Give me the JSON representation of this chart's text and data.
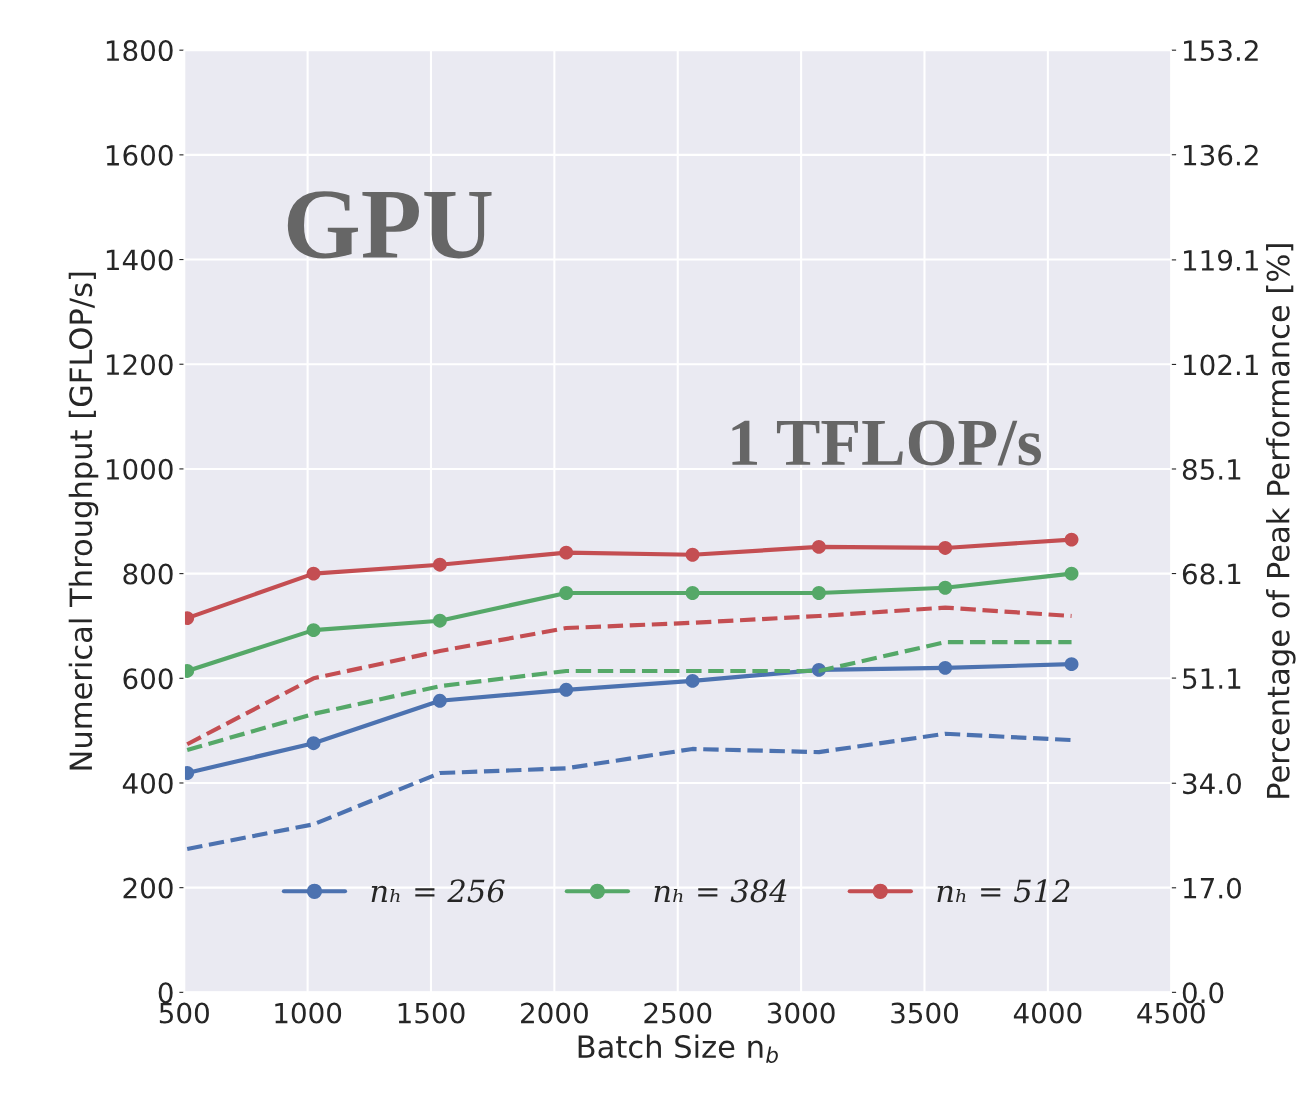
{
  "chart_data": {
    "type": "line",
    "xlabel": "Batch Size n$_{b}$",
    "ylabel": "Numerical Throughput [GFLOP/s]",
    "y2label": "Percentage of Peak Performance [%]",
    "x": [
      512,
      1024,
      1536,
      2048,
      2560,
      3072,
      3584,
      4096
    ],
    "series": [
      {
        "name": "nₕ = 256",
        "color": "#4c72b0",
        "marker": "circle",
        "line_style": "solid",
        "values": [
          419,
          476,
          557,
          578,
          595,
          616,
          620,
          627
        ]
      },
      {
        "name": "nₕ = 384",
        "color": "#55a868",
        "marker": "circle",
        "line_style": "solid",
        "values": [
          614,
          692,
          710,
          763,
          763,
          763,
          773,
          800
        ]
      },
      {
        "name": "nₕ = 512",
        "color": "#c44e52",
        "marker": "circle",
        "line_style": "solid",
        "values": [
          715,
          800,
          817,
          840,
          836,
          851,
          849,
          865
        ]
      },
      {
        "color": "#4c72b0",
        "marker": "none",
        "line_style": "dashed",
        "values": [
          274,
          321,
          419,
          428,
          465,
          459,
          494,
          482
        ]
      },
      {
        "color": "#55a868",
        "marker": "none",
        "line_style": "dashed",
        "values": [
          463,
          532,
          585,
          614,
          614,
          614,
          669,
          669
        ]
      },
      {
        "color": "#c44e52",
        "marker": "none",
        "line_style": "dashed",
        "values": [
          474,
          600,
          652,
          696,
          706,
          719,
          735,
          719
        ]
      }
    ],
    "xlim": [
      500,
      4500
    ],
    "xticks": [
      500,
      1000,
      1500,
      2000,
      2500,
      3000,
      3500,
      4000,
      4500
    ],
    "ylim": [
      0,
      1800
    ],
    "yticks": [
      0,
      200,
      400,
      600,
      800,
      1000,
      1200,
      1400,
      1600,
      1800
    ],
    "y2lim": [
      0,
      153.2
    ],
    "y2ticks": [
      {
        "value": 0,
        "label": "0.0"
      },
      {
        "value": 17.0,
        "label": "17.0"
      },
      {
        "value": 34.0,
        "label": "34.0"
      },
      {
        "value": 51.1,
        "label": "51.1"
      },
      {
        "value": 68.1,
        "label": "68.1"
      },
      {
        "value": 85.1,
        "label": "85.1"
      },
      {
        "value": 102.1,
        "label": "102.1"
      },
      {
        "value": 119.1,
        "label": "119.1"
      },
      {
        "value": 136.2,
        "label": "136.2"
      },
      {
        "value": 153.2,
        "label": "153.2"
      }
    ],
    "annotations": [
      "GPU",
      "1 TFLOP/s"
    ],
    "grid": true,
    "legend": "bottom"
  }
}
